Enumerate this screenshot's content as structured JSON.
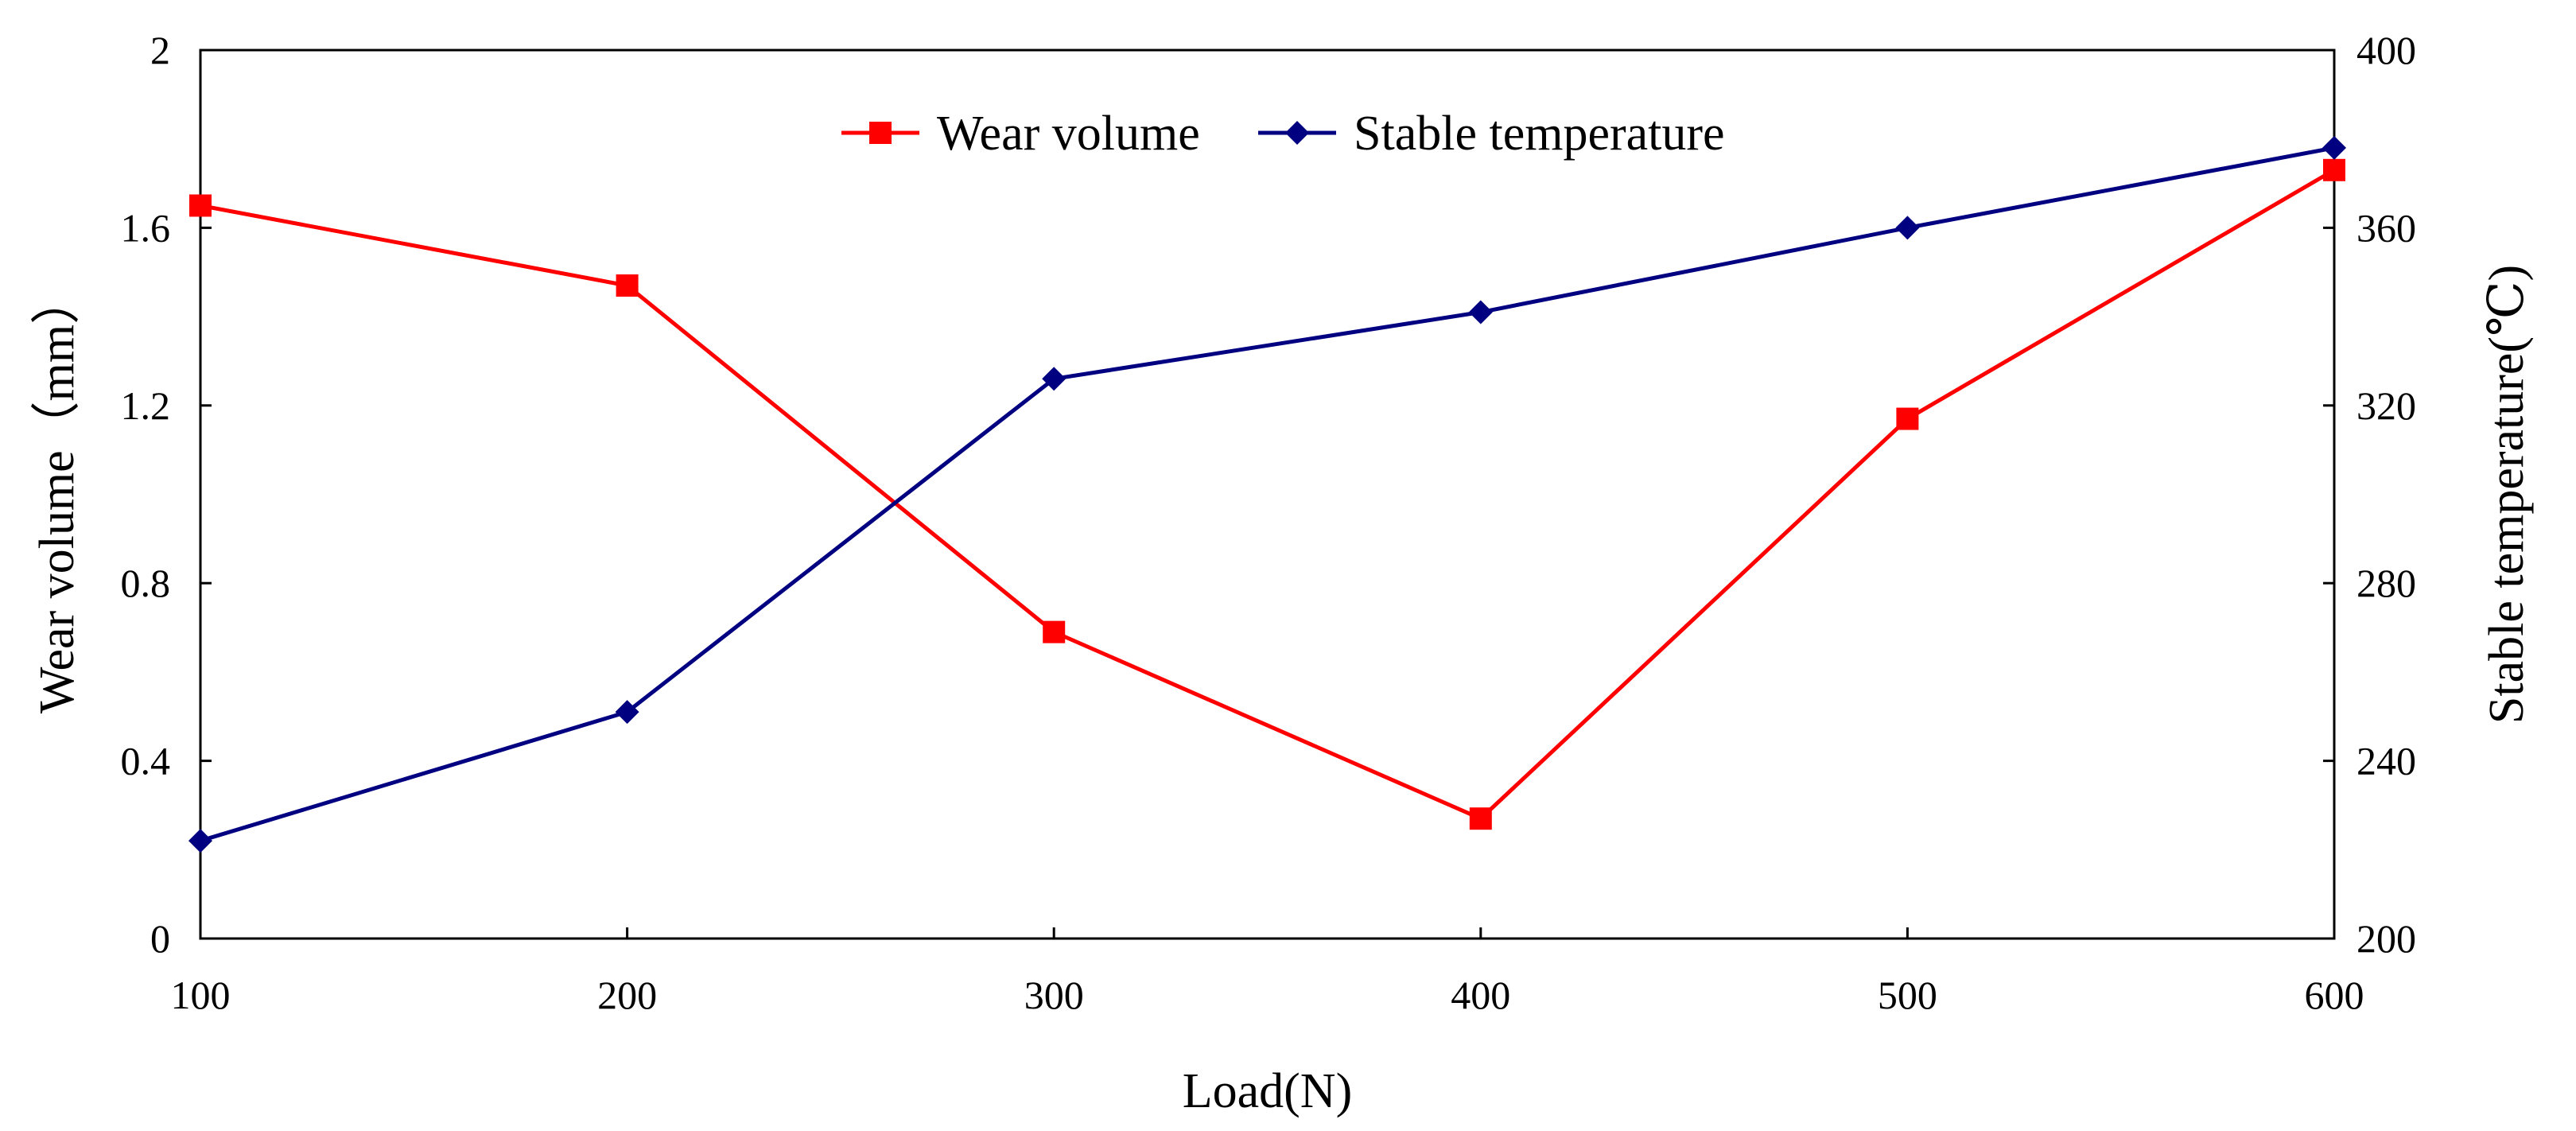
{
  "chart_data": {
    "type": "line",
    "title": "",
    "xlabel": "Load(N)",
    "ylabel_left": "Wear volume（mm）",
    "ylabel_right": "Stable temperature(℃)",
    "x": [
      100,
      200,
      300,
      400,
      500,
      600
    ],
    "xlim": [
      100,
      600
    ],
    "x_ticks": [
      "100",
      "200",
      "300",
      "400",
      "500",
      "600"
    ],
    "ylim_left": [
      0,
      2
    ],
    "y_left_ticks": [
      "0",
      "0.4",
      "0.8",
      "1.2",
      "1.6",
      "2"
    ],
    "ylim_right": [
      200,
      400
    ],
    "y_right_ticks": [
      "200",
      "240",
      "280",
      "320",
      "360",
      "400"
    ],
    "grid": false,
    "legend_position": "top-center",
    "series": [
      {
        "name": "Wear volume",
        "axis": "left",
        "color": "#ff0000",
        "marker": "square",
        "values": [
          1.65,
          1.47,
          0.69,
          0.27,
          1.17,
          1.73
        ]
      },
      {
        "name": "Stable temperature",
        "axis": "right",
        "color": "#000080",
        "marker": "diamond",
        "values": [
          222,
          251,
          326,
          341,
          360,
          378
        ]
      }
    ]
  }
}
